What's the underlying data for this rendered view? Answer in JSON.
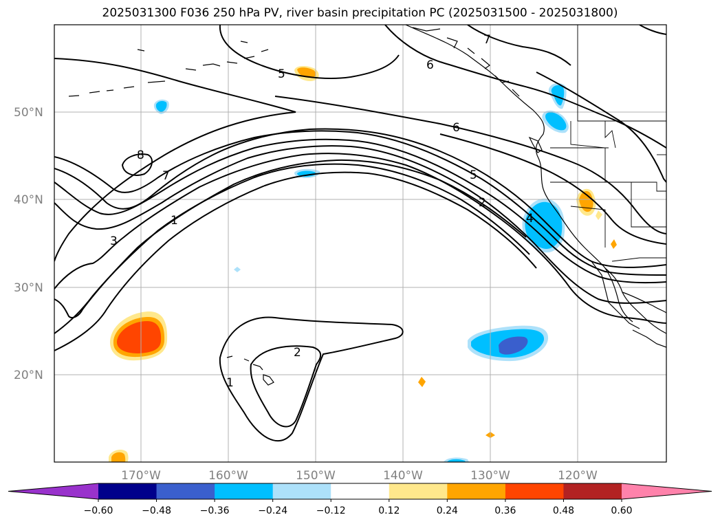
{
  "title": "2025031300 F036 250 hPa PV, river basin precipitation PC (2025031500 - 2025031800)",
  "map": {
    "lat_labels": [
      "50°N",
      "40°N",
      "30°N",
      "20°N"
    ],
    "lon_labels": [
      "170°W",
      "160°W",
      "150°W",
      "140°W",
      "130°W",
      "120°W"
    ],
    "grid": true
  },
  "pv_contour_labels": [
    "7",
    "6",
    "5",
    "6",
    "8",
    "7",
    "5",
    "2",
    "1",
    "3",
    "4",
    "2",
    "1"
  ],
  "colorbar": {
    "extend": "both",
    "tick_labels": [
      "−0.60",
      "−0.48",
      "−0.36",
      "−0.24",
      "−0.12",
      "0.12",
      "0.24",
      "0.36",
      "0.48",
      "0.60"
    ],
    "colors": [
      "#9932CC",
      "#00008B",
      "#3A5FCD",
      "#00BFFF",
      "#ADE1FA",
      "#FFFFFF",
      "#FFE88C",
      "#FFA500",
      "#FF4500",
      "#B22222",
      "#FF82AB"
    ]
  }
}
